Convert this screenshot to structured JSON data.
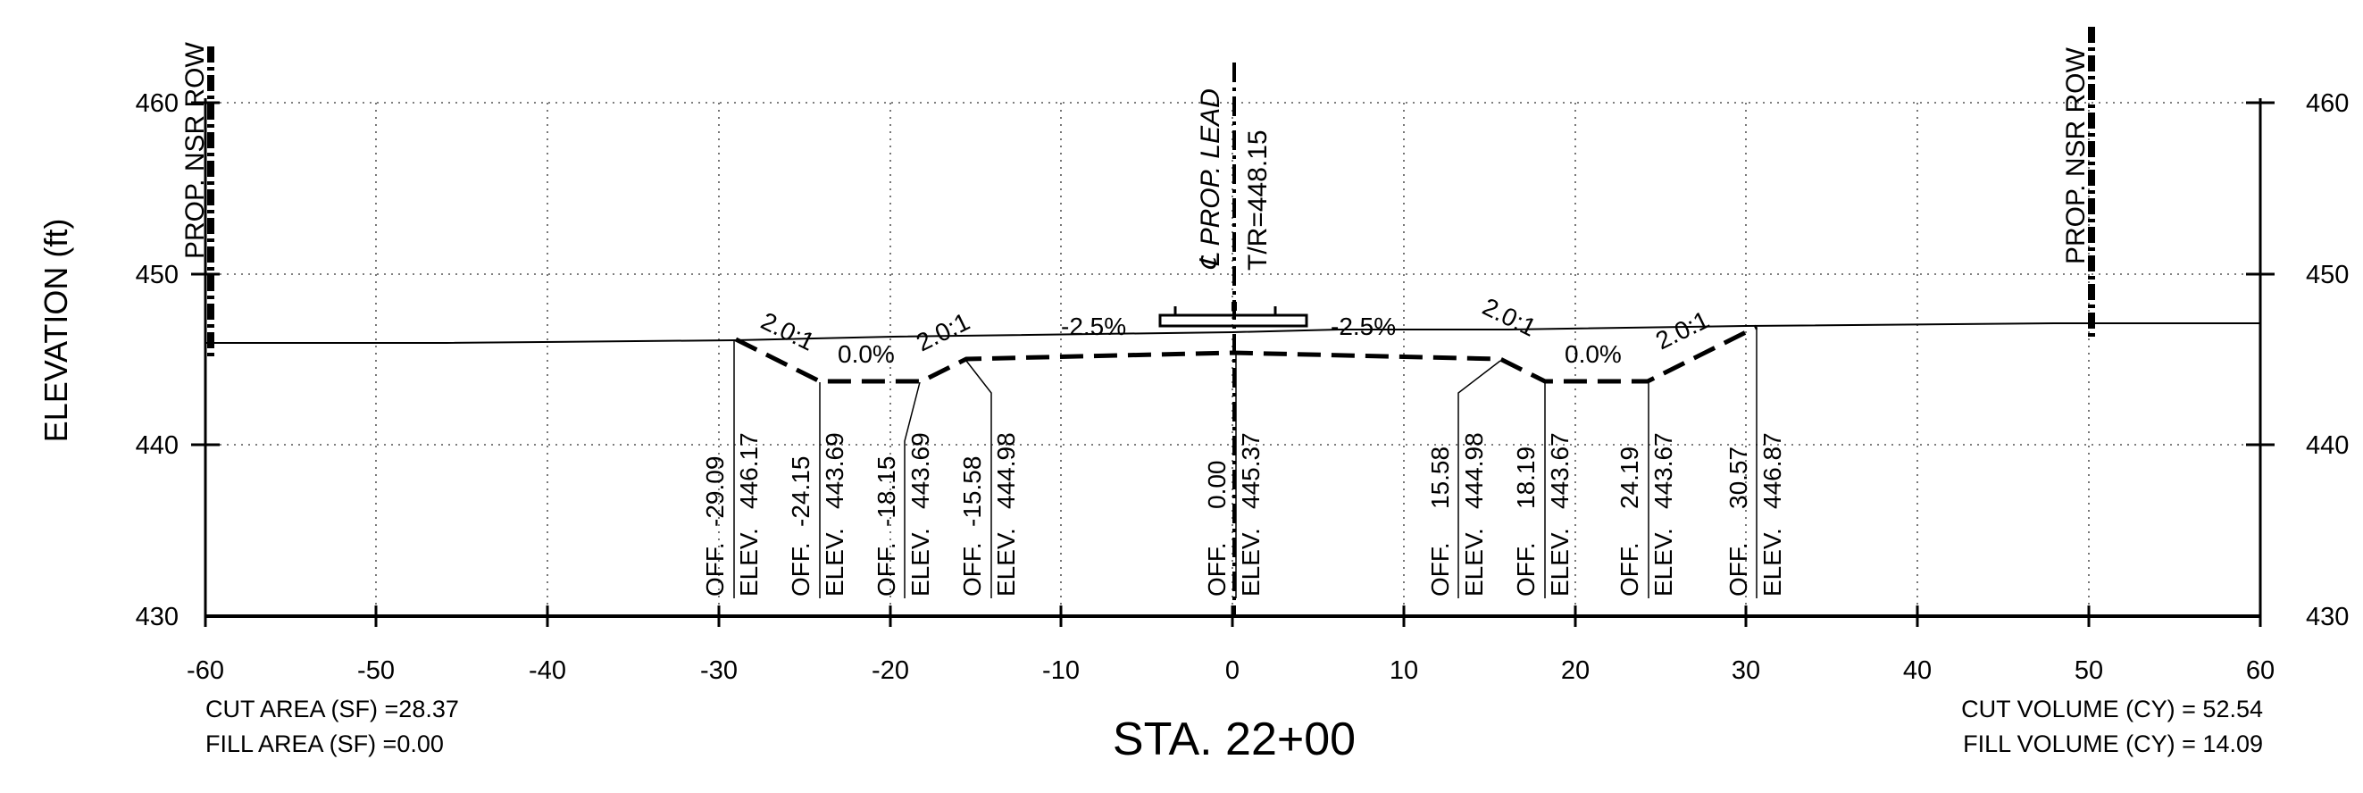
{
  "station_title": "STA. 22+00",
  "y_axis_label": "ELEVATION (ft)",
  "x_ticks": [
    "-60",
    "-50",
    "-40",
    "-30",
    "-20",
    "-10",
    "0",
    "10",
    "20",
    "30",
    "40",
    "50",
    "60"
  ],
  "y_ticks": [
    "430",
    "440",
    "450",
    "460"
  ],
  "row_left_label": "PROP. NSR ROW",
  "row_right_label": "PROP. NSR ROW",
  "centerline_label": "℄ PROP. LEAD",
  "tr_label": "T/R=448.15",
  "slopes": {
    "left_outer": "2.0:1",
    "left_flat": "0.0%",
    "left_inner": "2.0:1",
    "left_cross": "-2.5%",
    "right_cross": "-2.5%",
    "right_inner": "2.0:1",
    "right_flat": "0.0%",
    "right_outer": "2.0:1"
  },
  "points": [
    {
      "off_label": "OFF.",
      "off": "-29.09",
      "elev_label": "ELEV.",
      "elev": "446.17"
    },
    {
      "off_label": "OFF.",
      "off": "-24.15",
      "elev_label": "ELEV.",
      "elev": "443.69"
    },
    {
      "off_label": "OFF.",
      "off": "-18.15",
      "elev_label": "ELEV.",
      "elev": "443.69"
    },
    {
      "off_label": "OFF.",
      "off": "-15.58",
      "elev_label": "ELEV.",
      "elev": "444.98"
    },
    {
      "off_label": "OFF.",
      "off": "0.00",
      "elev_label": "ELEV.",
      "elev": "445.37"
    },
    {
      "off_label": "OFF.",
      "off": "15.58",
      "elev_label": "ELEV.",
      "elev": "444.98"
    },
    {
      "off_label": "OFF.",
      "off": "18.19",
      "elev_label": "ELEV.",
      "elev": "443.67"
    },
    {
      "off_label": "OFF.",
      "off": "24.19",
      "elev_label": "ELEV.",
      "elev": "443.67"
    },
    {
      "off_label": "OFF.",
      "off": "30.57",
      "elev_label": "ELEV.",
      "elev": "446.87"
    }
  ],
  "cut_area": "CUT AREA (SF) =28.37",
  "fill_area": "FILL AREA (SF) =0.00",
  "cut_volume": "CUT VOLUME (CY) =  52.54",
  "fill_volume": "FILL VOLUME (CY) =  14.09"
}
